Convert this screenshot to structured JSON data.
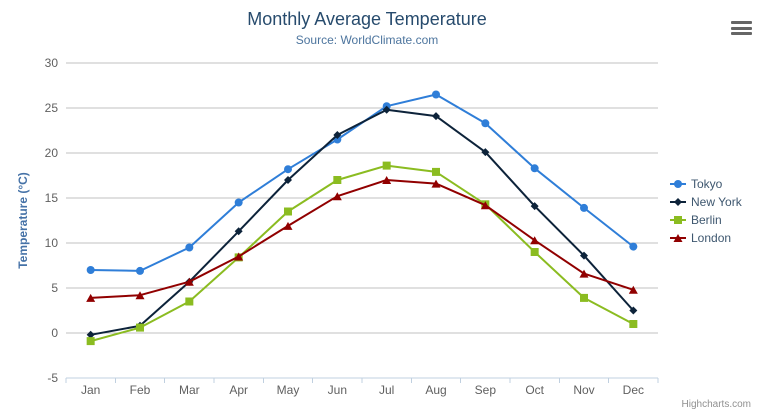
{
  "chart_data": {
    "type": "line",
    "title": "Monthly Average Temperature",
    "subtitle": "Source: WorldClimate.com",
    "xlabel": "",
    "ylabel": "Temperature (°C)",
    "categories": [
      "Jan",
      "Feb",
      "Mar",
      "Apr",
      "May",
      "Jun",
      "Jul",
      "Aug",
      "Sep",
      "Oct",
      "Nov",
      "Dec"
    ],
    "ylim": [
      -5,
      30
    ],
    "ytick_interval": 5,
    "grid": true,
    "legend_position": "right",
    "series": [
      {
        "name": "Tokyo",
        "color": "#2f7ed8",
        "marker": "circle",
        "values": [
          7.0,
          6.9,
          9.5,
          14.5,
          18.2,
          21.5,
          25.2,
          26.5,
          23.3,
          18.3,
          13.9,
          9.6
        ]
      },
      {
        "name": "New York",
        "color": "#0d233a",
        "marker": "diamond",
        "values": [
          -0.2,
          0.8,
          5.7,
          11.3,
          17.0,
          22.0,
          24.8,
          24.1,
          20.1,
          14.1,
          8.6,
          2.5
        ]
      },
      {
        "name": "Berlin",
        "color": "#8bbc21",
        "marker": "square",
        "values": [
          -0.9,
          0.6,
          3.5,
          8.4,
          13.5,
          17.0,
          18.6,
          17.9,
          14.3,
          9.0,
          3.9,
          1.0
        ]
      },
      {
        "name": "London",
        "color": "#910000",
        "marker": "triangle",
        "values": [
          3.9,
          4.2,
          5.7,
          8.5,
          11.9,
          15.2,
          17.0,
          16.6,
          14.2,
          10.3,
          6.6,
          4.8
        ]
      }
    ],
    "colors": {
      "title": "#274b6d",
      "subtitle": "#4d759e",
      "axis_labels": "#606060",
      "y_axis_title": "#4572a7",
      "gridline": "#c0c0c0",
      "x_axis_line": "#c0d0e0",
      "legend_text": "#3e576f",
      "credits_text": "#909090",
      "menu_icon": "#666666"
    }
  },
  "credits": "Highcharts.com",
  "icons": {
    "export_menu": "hamburger"
  }
}
